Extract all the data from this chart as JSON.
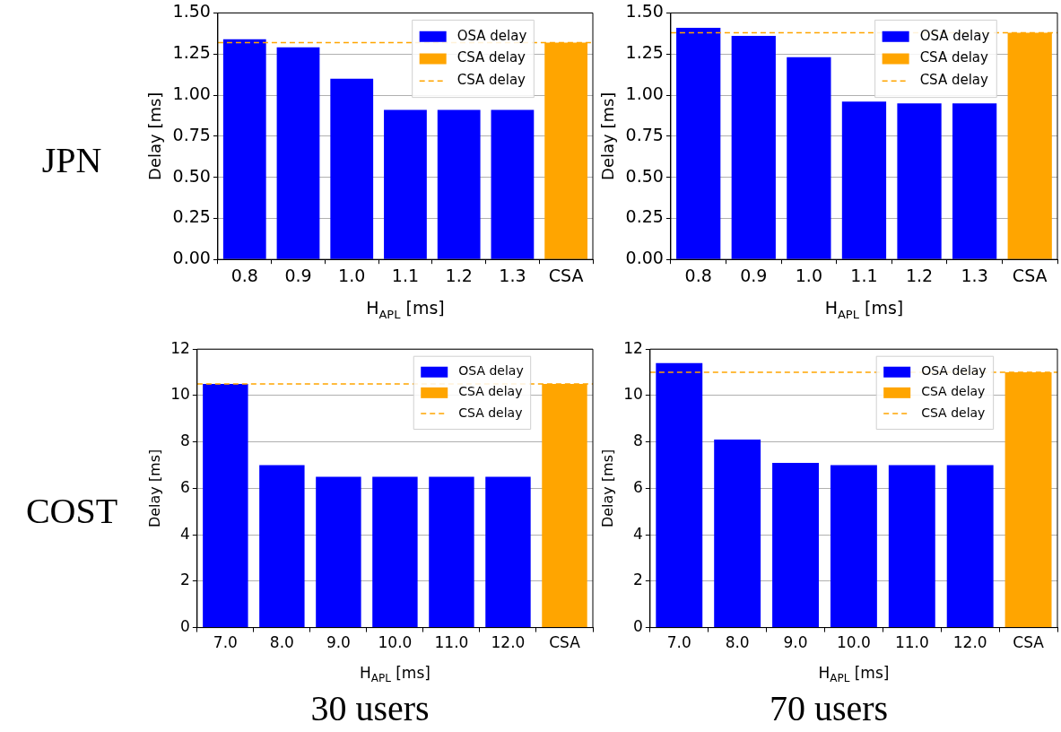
{
  "chart_data": [
    {
      "type": "bar",
      "annotations": [
        "JPN"
      ],
      "xlabel": "H$_{APL}$ [ms]",
      "ylabel": "Delay [ms]",
      "categories": [
        "0.8",
        "0.9",
        "1.0",
        "1.1",
        "1.2",
        "1.3",
        "CSA"
      ],
      "series": [
        {
          "name": "OSA delay",
          "color": "#0000ff",
          "values": [
            1.34,
            1.29,
            1.1,
            0.91,
            0.91,
            0.91,
            null
          ]
        },
        {
          "name": "CSA delay",
          "color": "#ffa500",
          "values": [
            null,
            null,
            null,
            null,
            null,
            null,
            1.32
          ]
        }
      ],
      "ref_lines": [
        {
          "axis": "y",
          "value": 1.32,
          "label": "CSA delay",
          "color": "#ffa500",
          "line_style": "dashed"
        }
      ],
      "ylim": [
        0,
        1.5
      ],
      "yticks": [
        {
          "value": 0,
          "label": "0.00"
        },
        {
          "value": 0.25,
          "label": "0.25"
        },
        {
          "value": 0.5,
          "label": "0.50"
        },
        {
          "value": 0.75,
          "label": "0.75"
        },
        {
          "value": 1,
          "label": "1.00"
        },
        {
          "value": 1.25,
          "label": "1.25"
        },
        {
          "value": 1.5,
          "label": "1.50"
        }
      ],
      "grid": "y",
      "legend": "top right"
    },
    {
      "type": "bar",
      "xlabel": "H$_{APL}$ [ms]",
      "ylabel": "Delay [ms]",
      "categories": [
        "0.8",
        "0.9",
        "1.0",
        "1.1",
        "1.2",
        "1.3",
        "CSA"
      ],
      "series": [
        {
          "name": "OSA delay",
          "color": "#0000ff",
          "values": [
            1.41,
            1.36,
            1.23,
            0.96,
            0.95,
            0.95,
            null
          ]
        },
        {
          "name": "CSA delay",
          "color": "#ffa500",
          "values": [
            null,
            null,
            null,
            null,
            null,
            null,
            1.38
          ]
        }
      ],
      "ref_lines": [
        {
          "axis": "y",
          "value": 1.38,
          "label": "CSA delay",
          "color": "#ffa500",
          "line_style": "dashed"
        }
      ],
      "ylim": [
        0,
        1.5
      ],
      "yticks": [
        {
          "value": 0,
          "label": "0.00"
        },
        {
          "value": 0.25,
          "label": "0.25"
        },
        {
          "value": 0.5,
          "label": "0.50"
        },
        {
          "value": 0.75,
          "label": "0.75"
        },
        {
          "value": 1,
          "label": "1.00"
        },
        {
          "value": 1.25,
          "label": "1.25"
        },
        {
          "value": 1.5,
          "label": "1.50"
        }
      ],
      "grid": "y",
      "legend": "top right"
    },
    {
      "type": "bar",
      "annotations": [
        "COST",
        "30 users"
      ],
      "xlabel": "H$_{APL}$ [ms]",
      "ylabel": "Delay [ms]",
      "categories": [
        "7.0",
        "8.0",
        "9.0",
        "10.0",
        "11.0",
        "12.0",
        "CSA"
      ],
      "series": [
        {
          "name": "OSA delay",
          "color": "#0000ff",
          "values": [
            10.5,
            7.0,
            6.5,
            6.5,
            6.5,
            6.5,
            null
          ]
        },
        {
          "name": "CSA delay",
          "color": "#ffa500",
          "values": [
            null,
            null,
            null,
            null,
            null,
            null,
            10.5
          ]
        }
      ],
      "ref_lines": [
        {
          "axis": "y",
          "value": 10.5,
          "label": "CSA delay",
          "color": "#ffa500",
          "line_style": "dashed"
        }
      ],
      "ylim": [
        0,
        12
      ],
      "yticks": [
        0,
        2,
        4,
        6,
        8,
        10,
        12
      ],
      "grid": "y",
      "legend": "top right"
    },
    {
      "type": "bar",
      "annotations": [
        "70 users"
      ],
      "xlabel": "H$_{APL}$ [ms]",
      "ylabel": "Delay [ms]",
      "categories": [
        "7.0",
        "8.0",
        "9.0",
        "10.0",
        "11.0",
        "12.0",
        "CSA"
      ],
      "series": [
        {
          "name": "OSA delay",
          "color": "#0000ff",
          "values": [
            11.4,
            8.1,
            7.1,
            7.0,
            7.0,
            7.0,
            null
          ]
        },
        {
          "name": "CSA delay",
          "color": "#ffa500",
          "values": [
            null,
            null,
            null,
            null,
            null,
            null,
            11.0
          ]
        }
      ],
      "ref_lines": [
        {
          "axis": "y",
          "value": 11.0,
          "label": "CSA delay",
          "color": "#ffa500",
          "line_style": "dashed"
        }
      ],
      "ylim": [
        0,
        12
      ],
      "yticks": [
        0,
        2,
        4,
        6,
        8,
        10,
        12
      ],
      "grid": "y",
      "legend": "top right"
    }
  ]
}
